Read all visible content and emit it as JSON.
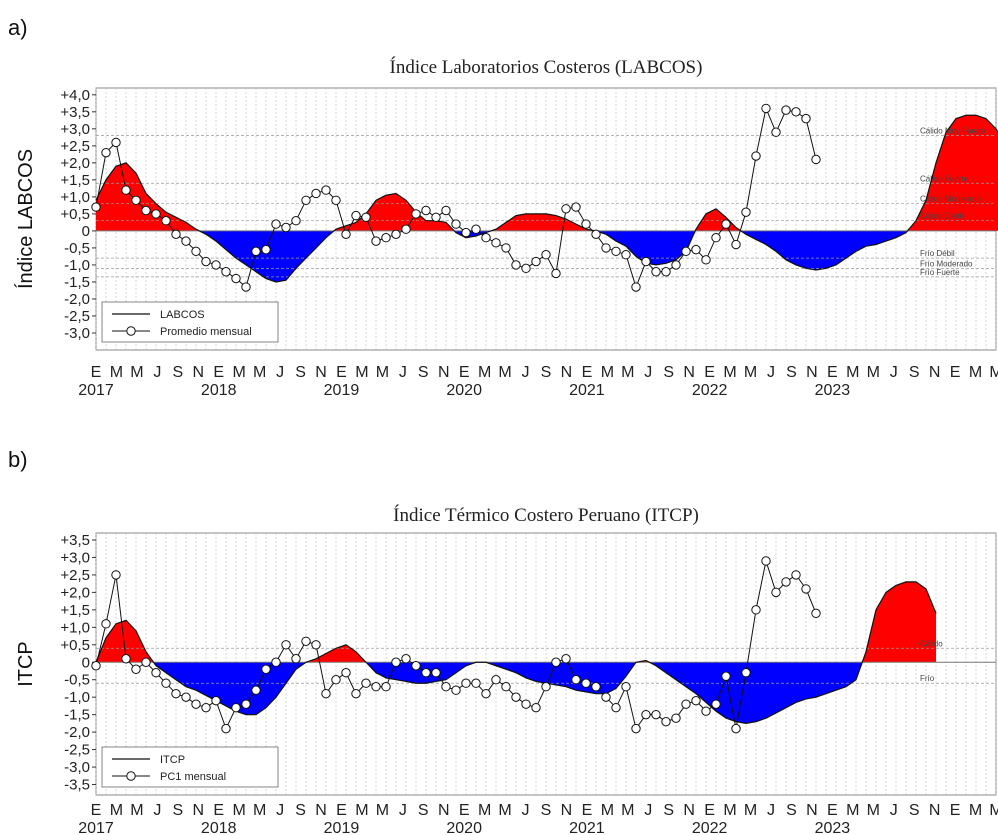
{
  "chart_data": [
    {
      "type": "area",
      "panel_label": "a)",
      "title": "Índice Laboratorios Costeros (LABCOS)",
      "ylabel": "Índice LABCOS",
      "ylim": [
        -3.5,
        4.2
      ],
      "yticks": [
        "+4,0",
        "+3,5",
        "+3,0",
        "+2,5",
        "+2,0",
        "+1,5",
        "+1,0",
        "+0,5",
        "0",
        "-0,5",
        "-1,0",
        "-1,5",
        "-2,0",
        "-2,5",
        "-3,0"
      ],
      "ytick_values": [
        4.0,
        3.5,
        3.0,
        2.5,
        2.0,
        1.5,
        1.0,
        0.5,
        0,
        -0.5,
        -1.0,
        -1.5,
        -2.0,
        -2.5,
        -3.0
      ],
      "month_labels": [
        "E",
        "M",
        "M",
        "J",
        "S",
        "N",
        "E",
        "M",
        "M",
        "J",
        "S",
        "N",
        "E",
        "M",
        "M",
        "J",
        "S",
        "N",
        "E",
        "M",
        "M",
        "J",
        "S",
        "N",
        "E",
        "M",
        "M",
        "J",
        "S",
        "N",
        "E",
        "M",
        "M",
        "J",
        "S",
        "N",
        "E",
        "M",
        "M",
        "J",
        "S",
        "N",
        "E",
        "M",
        "M"
      ],
      "year_labels": [
        "2017",
        "2018",
        "2019",
        "2020",
        "2021",
        "2022",
        "2023"
      ],
      "thresholds": [
        {
          "label": "Cálido Muy Fuerte",
          "value": 2.8
        },
        {
          "label": "Cálido Fuerte",
          "value": 1.4
        },
        {
          "label": "Cálido Moderado",
          "value": 0.8
        },
        {
          "label": "Cálido Débil",
          "value": 0.3
        },
        {
          "label": "Frío Débil",
          "value": -0.8
        },
        {
          "label": "Frío Moderado",
          "value": -1.1
        },
        {
          "label": "Frío Fuerte",
          "value": -1.35
        }
      ],
      "legend": {
        "position": "bottom-left",
        "entries": [
          "LABCOS",
          "Promedio mensual"
        ]
      },
      "series": [
        {
          "name": "LABCOS",
          "values": [
            0.9,
            1.5,
            1.9,
            2.0,
            1.7,
            1.1,
            0.8,
            0.55,
            0.4,
            0.25,
            0.05,
            -0.1,
            -0.3,
            -0.55,
            -0.8,
            -1.0,
            -1.2,
            -1.4,
            -1.5,
            -1.45,
            -1.1,
            -0.8,
            -0.5,
            -0.2,
            0.05,
            0.15,
            0.25,
            0.5,
            0.9,
            1.05,
            1.1,
            0.9,
            0.55,
            0.3,
            0.3,
            0.25,
            -0.05,
            -0.2,
            -0.15,
            -0.05,
            0.05,
            0.25,
            0.45,
            0.5,
            0.5,
            0.5,
            0.45,
            0.35,
            0.2,
            0.05,
            0.0,
            -0.1,
            -0.3,
            -0.45,
            -0.75,
            -0.95,
            -1.0,
            -0.95,
            -0.85,
            -0.6,
            0.05,
            0.5,
            0.65,
            0.4,
            0.1,
            -0.1,
            -0.25,
            -0.4,
            -0.6,
            -0.85,
            -1.0,
            -1.1,
            -1.15,
            -1.1,
            -1.0,
            -0.8,
            -0.6,
            -0.45,
            -0.4,
            -0.3,
            -0.2,
            -0.05,
            0.3,
            0.9,
            2.0,
            2.9,
            3.3,
            3.4,
            3.4,
            3.3,
            3.0,
            2.5
          ]
        },
        {
          "name": "Promedio mensual",
          "values": [
            0.7,
            2.3,
            2.6,
            1.2,
            0.9,
            0.6,
            0.5,
            0.3,
            -0.1,
            -0.3,
            -0.6,
            -0.9,
            -1.0,
            -1.2,
            -1.4,
            -1.65,
            -0.6,
            -0.55,
            0.2,
            0.1,
            0.3,
            0.9,
            1.1,
            1.2,
            0.9,
            -0.1,
            0.45,
            0.4,
            -0.3,
            -0.2,
            -0.1,
            0.05,
            0.5,
            0.6,
            0.4,
            0.6,
            0.2,
            -0.05,
            0.05,
            -0.2,
            -0.35,
            -0.5,
            -1.0,
            -1.1,
            -0.9,
            -0.7,
            -1.25,
            0.65,
            0.7,
            0.2,
            -0.1,
            -0.5,
            -0.6,
            -0.7,
            -1.65,
            -0.9,
            -1.2,
            -1.2,
            -1.0,
            -0.6,
            -0.55,
            -0.85,
            -0.2,
            0.2,
            -0.4,
            0.55,
            2.2,
            3.6,
            2.9,
            3.55,
            3.5,
            3.3,
            2.1
          ]
        }
      ]
    },
    {
      "type": "area",
      "panel_label": "b)",
      "title": "Índice Térmico Costero Peruano (ITCP)",
      "ylabel": "ITCP",
      "ylim": [
        -3.8,
        3.7
      ],
      "yticks": [
        "+3,5",
        "+3,0",
        "+2,5",
        "+2,0",
        "+1,5",
        "+1,0",
        "+0,5",
        "0",
        "-0,5",
        "-1,0",
        "-1,5",
        "-2,0",
        "-2,5",
        "-3,0",
        "-3,5"
      ],
      "ytick_values": [
        3.5,
        3.0,
        2.5,
        2.0,
        1.5,
        1.0,
        0.5,
        0,
        -0.5,
        -1.0,
        -1.5,
        -2.0,
        -2.5,
        -3.0,
        -3.5
      ],
      "month_labels": [
        "E",
        "M",
        "M",
        "J",
        "S",
        "N",
        "E",
        "M",
        "M",
        "J",
        "S",
        "N",
        "E",
        "M",
        "M",
        "J",
        "S",
        "N",
        "E",
        "M",
        "M",
        "J",
        "S",
        "N",
        "E",
        "M",
        "M",
        "J",
        "S",
        "N",
        "E",
        "M",
        "M",
        "J",
        "S",
        "N",
        "E",
        "M",
        "M",
        "J",
        "S",
        "N",
        "E",
        "M",
        "M"
      ],
      "year_labels": [
        "2017",
        "2018",
        "2019",
        "2020",
        "2021",
        "2022",
        "2023"
      ],
      "thresholds": [
        {
          "label": "Cálido",
          "value": 0.4
        },
        {
          "label": "Frío",
          "value": -0.6
        }
      ],
      "legend": {
        "position": "bottom-left",
        "entries": [
          "ITCP",
          "PC1 mensual"
        ]
      },
      "series": [
        {
          "name": "ITCP",
          "values": [
            0.0,
            0.7,
            1.1,
            1.2,
            0.9,
            0.3,
            -0.1,
            -0.3,
            -0.5,
            -0.7,
            -0.8,
            -0.95,
            -1.1,
            -1.25,
            -1.4,
            -1.5,
            -1.5,
            -1.3,
            -1.0,
            -0.6,
            -0.2,
            0.0,
            0.1,
            0.25,
            0.4,
            0.5,
            0.3,
            0.0,
            -0.3,
            -0.45,
            -0.5,
            -0.55,
            -0.6,
            -0.6,
            -0.55,
            -0.5,
            -0.3,
            -0.1,
            0.0,
            0.0,
            -0.1,
            -0.2,
            -0.3,
            -0.45,
            -0.55,
            -0.6,
            -0.65,
            -0.7,
            -0.8,
            -0.85,
            -0.9,
            -0.9,
            -0.75,
            -0.4,
            0.0,
            0.05,
            -0.1,
            -0.3,
            -0.5,
            -0.7,
            -0.9,
            -1.15,
            -1.4,
            -1.6,
            -1.7,
            -1.75,
            -1.7,
            -1.6,
            -1.45,
            -1.3,
            -1.15,
            -1.05,
            -1.0,
            -0.9,
            -0.8,
            -0.7,
            -0.5,
            0.3,
            1.5,
            2.0,
            2.2,
            2.3,
            2.3,
            2.1,
            1.4
          ]
        },
        {
          "name": "PC1 mensual",
          "values": [
            -0.1,
            1.1,
            2.5,
            0.1,
            -0.2,
            0.0,
            -0.3,
            -0.6,
            -0.9,
            -1.0,
            -1.2,
            -1.3,
            -1.1,
            -1.9,
            -1.3,
            -1.2,
            -0.8,
            -0.2,
            0.0,
            0.5,
            0.1,
            0.6,
            0.5,
            -0.9,
            -0.5,
            -0.3,
            -0.9,
            -0.6,
            -0.7,
            -0.7,
            0.0,
            0.1,
            -0.1,
            -0.3,
            -0.3,
            -0.7,
            -0.8,
            -0.6,
            -0.6,
            -0.9,
            -0.5,
            -0.7,
            -1.0,
            -1.2,
            -1.3,
            -0.7,
            0.0,
            0.1,
            -0.5,
            -0.6,
            -0.7,
            -1.0,
            -1.3,
            -0.7,
            -1.9,
            -1.5,
            -1.5,
            -1.7,
            -1.6,
            -1.2,
            -1.1,
            -1.4,
            -1.2,
            -0.4,
            -1.9,
            -0.3,
            1.5,
            2.9,
            2.0,
            2.3,
            2.5,
            2.1,
            1.4
          ]
        }
      ]
    }
  ]
}
